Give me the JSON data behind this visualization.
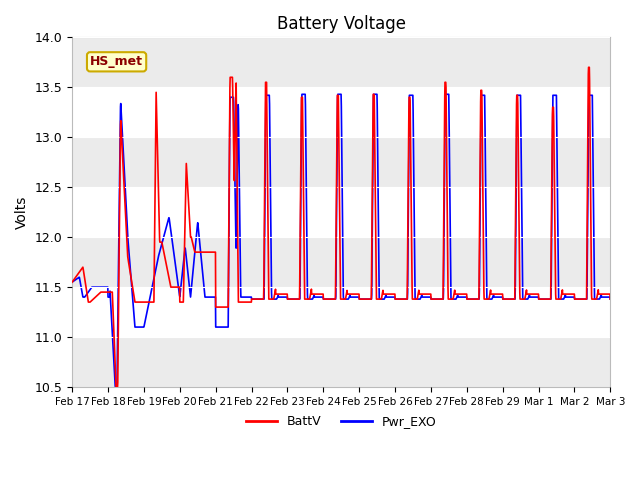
{
  "title": "Battery Voltage",
  "ylabel": "Volts",
  "ylim": [
    10.5,
    14.0
  ],
  "background_color": "#ffffff",
  "plot_bg_color": "#ffffff",
  "legend_labels": [
    "BattV",
    "Pwr_EXO"
  ],
  "legend_colors": [
    "red",
    "blue"
  ],
  "annotation_text": "HS_met",
  "annotation_bg": "#ffffcc",
  "annotation_border": "#ccaa00",
  "x_tick_labels": [
    "Feb 17",
    "Feb 18",
    "Feb 19",
    "Feb 20",
    "Feb 21",
    "Feb 22",
    "Feb 23",
    "Feb 24",
    "Feb 25",
    "Feb 26",
    "Feb 27",
    "Feb 28",
    "Feb 29",
    "Mar 1",
    "Mar 2",
    "Mar 3"
  ],
  "line_width": 1.2,
  "grid_color": "#dddddd",
  "n_days": 15,
  "yticks": [
    10.5,
    11.0,
    11.5,
    12.0,
    12.5,
    13.0,
    13.5,
    14.0
  ]
}
